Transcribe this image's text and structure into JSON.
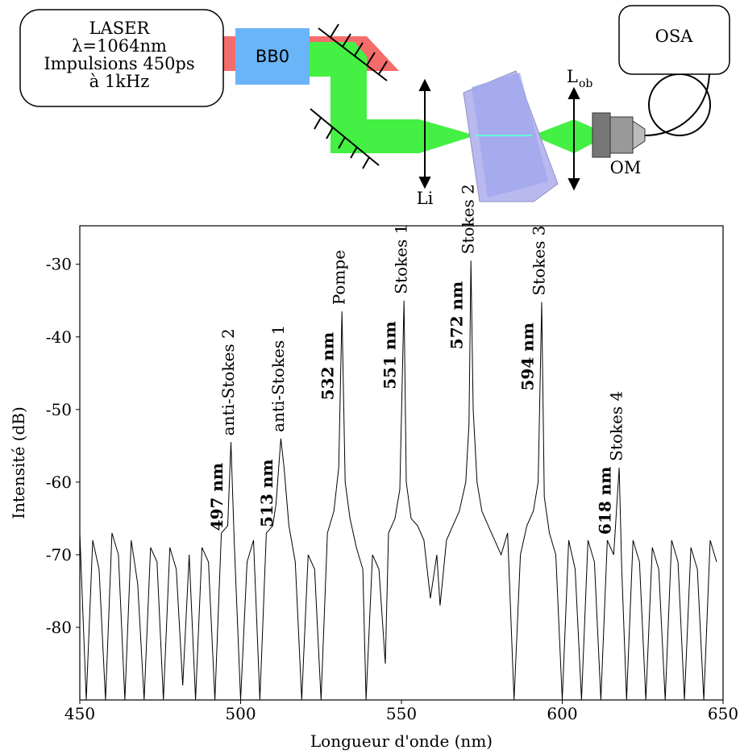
{
  "diagram": {
    "laser": [
      "LASER",
      "λ=1064nm",
      "Impulsions 450ps",
      "à 1kHz"
    ],
    "bbo": "BB0",
    "lens_in": "Li",
    "lens_out": "L",
    "lens_out_sub": "ob",
    "osa": "OSA",
    "objective": "OM"
  },
  "chart_data": {
    "type": "line",
    "xlabel": "Longueur d'onde (nm)",
    "ylabel": "Intensité (dB)",
    "color": "#000000",
    "xlim": [
      450,
      650
    ],
    "ylim": [
      -90,
      -24.7
    ],
    "xticks": [
      450,
      500,
      550,
      600,
      650
    ],
    "yticks": [
      -80,
      -70,
      -60,
      -50,
      -40,
      -30
    ],
    "x": [
      450,
      452,
      454,
      456,
      458,
      460,
      462,
      464,
      466,
      468,
      470,
      472,
      474,
      476,
      478,
      480,
      482,
      484,
      486,
      488,
      490,
      492,
      494,
      496,
      497,
      498,
      500,
      502,
      504,
      506,
      508,
      510,
      511,
      512.5,
      513.5,
      515,
      517,
      519,
      521,
      523,
      525,
      527,
      529,
      530.5,
      531.5,
      532.5,
      534,
      536,
      538,
      539,
      541,
      543,
      545,
      546,
      548,
      549.5,
      550.8,
      551.5,
      553,
      555,
      557,
      559,
      561,
      562,
      564,
      566,
      568,
      570,
      571,
      571.6,
      572.3,
      573.5,
      575,
      577,
      579,
      581,
      583,
      585,
      587,
      589,
      591,
      592.5,
      593.6,
      594.4,
      596,
      598,
      600,
      602,
      604,
      606,
      608,
      610,
      612,
      614,
      616,
      617.7,
      618.5,
      620,
      622,
      624,
      626,
      628,
      630,
      632,
      634,
      636,
      638,
      640,
      642,
      644,
      646,
      648
    ],
    "values": [
      -67,
      -90,
      -68,
      -72,
      -90,
      -67,
      -70,
      -90,
      -68,
      -74,
      -90,
      -69,
      -71,
      -90,
      -69,
      -72,
      -88,
      -70,
      -90,
      -69,
      -71,
      -90,
      -67,
      -66,
      -54.5,
      -68,
      -90,
      -71,
      -68,
      -90,
      -67,
      -66,
      -63,
      -54,
      -58,
      -66,
      -71,
      -90,
      -70,
      -72,
      -90,
      -67,
      -64,
      -58,
      -36.5,
      -60,
      -65,
      -69,
      -72,
      -90,
      -70,
      -72,
      -85,
      -67,
      -65,
      -61,
      -35,
      -60,
      -65,
      -66,
      -68,
      -76,
      -70,
      -77,
      -68,
      -66,
      -64,
      -60,
      -52,
      -29.5,
      -50,
      -60,
      -64,
      -66,
      -68,
      -70,
      -67,
      -90,
      -70,
      -66,
      -64,
      -60,
      -35.2,
      -62,
      -67,
      -70,
      -90,
      -68,
      -72,
      -90,
      -68,
      -71,
      -90,
      -68,
      -70,
      -58,
      -72,
      -90,
      -68,
      -71,
      -90,
      -69,
      -72,
      -90,
      -68,
      -71,
      -90,
      -69,
      -72,
      -90,
      -68,
      -71
    ],
    "annotations": [
      {
        "text": "anti-Stokes 2",
        "label": "497 nm"
      },
      {
        "text": "anti-Stokes 1",
        "label": "513 nm"
      },
      {
        "text": "Pompe",
        "label": "532 nm"
      },
      {
        "text": "Stokes 1",
        "label": "551 nm"
      },
      {
        "text": "Stokes 2",
        "label": "572 nm"
      },
      {
        "text": "Stokes 3",
        "label": "594 nm"
      },
      {
        "text": "Stokes 4",
        "label": "618 nm"
      }
    ]
  }
}
